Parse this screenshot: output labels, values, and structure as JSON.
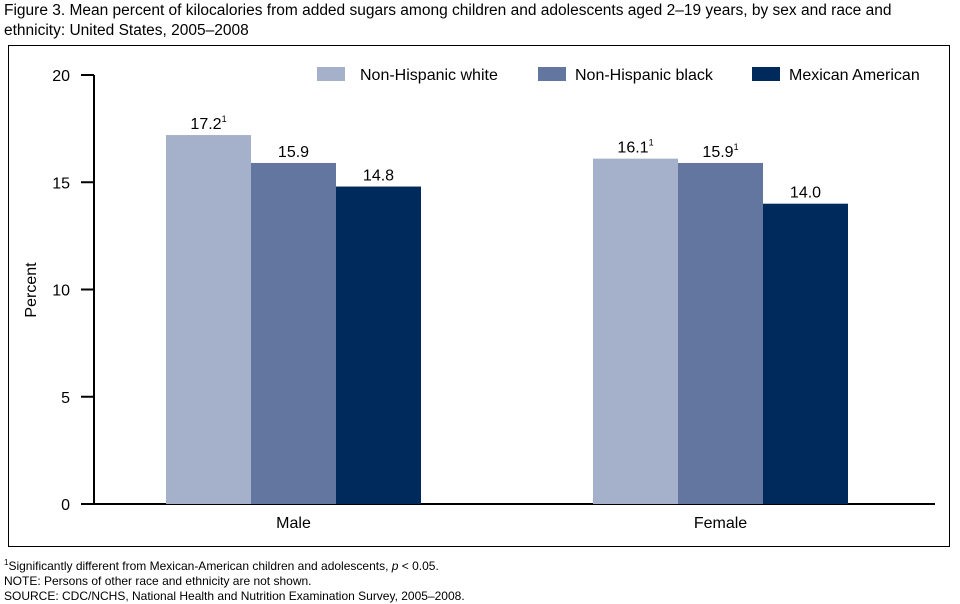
{
  "chart_data": {
    "type": "bar",
    "title": "Figure 3. Mean percent of kilocalories from added sugars among children and adolescents aged 2–19 years, by sex and race and ethnicity: United States, 2005–2008",
    "xlabel": "",
    "ylabel": "Percent",
    "ylim": [
      0,
      20
    ],
    "yticks": [
      0,
      5,
      10,
      15,
      20
    ],
    "grid": false,
    "legend_position": "top-right",
    "categories": [
      "Male",
      "Female"
    ],
    "series": [
      {
        "name": "Non-Hispanic white",
        "color": "#a5b0cb",
        "values": [
          17.2,
          16.1
        ],
        "labels": [
          "17.2",
          "16.1"
        ],
        "footnote": [
          "1",
          "1"
        ]
      },
      {
        "name": "Non-Hispanic black",
        "color": "#62769f",
        "values": [
          15.9,
          15.9
        ],
        "labels": [
          "15.9",
          "15.9"
        ],
        "footnote": [
          "",
          "1"
        ]
      },
      {
        "name": "Mexican American",
        "color": "#002a5c",
        "values": [
          14.8,
          14.0
        ],
        "labels": [
          "14.8",
          "14.0"
        ],
        "footnote": [
          "",
          ""
        ]
      }
    ]
  },
  "notes": {
    "footnote_mark": "1",
    "footnote_pre": "Significantly different from Mexican-American children and adolescents, ",
    "footnote_p": "p",
    "footnote_post": " < 0.05.",
    "note": "NOTE: Persons of other race and ethnicity are not shown.",
    "source": "SOURCE: CDC/NCHS, National Health and Nutrition Examination Survey, 2005–2008."
  }
}
